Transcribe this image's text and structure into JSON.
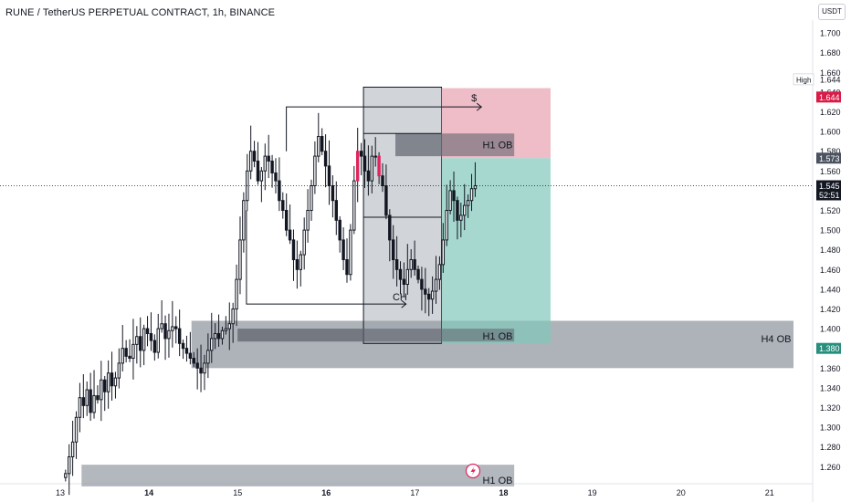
{
  "header": {
    "title": "RUNE / TetherUS PERPETUAL CONTRACT, 1h, BINANCE",
    "currency_badge": "USDT"
  },
  "colors": {
    "up": "#131722",
    "down": "#131722",
    "highlight_candle": "#e0245e",
    "zone_gray": "#9aa0a8",
    "zone_dark": "#6b7079",
    "target_zone": "#80c8bb",
    "stop_zone": "#e8a7b4",
    "high_badge": "#d81b47",
    "price_badge": "#131722",
    "level_badge": "#4b5260",
    "h4_badge": "#268f7d"
  },
  "price_labels": {
    "high_label": "High",
    "high_value": "1.644",
    "high_badge": "1.644",
    "level_badge": "1.573",
    "current_price": "1.545",
    "countdown": "52:51",
    "h4_badge": "1.380"
  },
  "annotations": {
    "h1_ob_top": "H1 OB",
    "h1_ob_mid": "H1 OB",
    "h1_ob_bottom": "H1 OB",
    "h4_ob": "H4 OB",
    "ch": "CH",
    "dollar": "$"
  },
  "chart_data": {
    "type": "candlestick",
    "title": "RUNE / TetherUS PERPETUAL CONTRACT, 1h, BINANCE",
    "ylim": [
      1.24,
      1.72
    ],
    "y_ticks": [
      "1.260",
      "1.280",
      "1.300",
      "1.320",
      "1.340",
      "1.360",
      "1.380",
      "1.400",
      "1.420",
      "1.440",
      "1.460",
      "1.480",
      "1.500",
      "1.520",
      "1.540",
      "1.560",
      "1.580",
      "1.600",
      "1.620",
      "1.640",
      "1.660",
      "1.680",
      "1.700"
    ],
    "x_tick_labels": [
      "13",
      "14",
      "15",
      "16",
      "17",
      "18",
      "19",
      "20",
      "21"
    ],
    "x_tick_bold": [
      "14",
      "16",
      "18"
    ],
    "x_range_days": [
      12.97,
      21.1
    ],
    "high": 1.644,
    "current_price": 1.545,
    "candle_count": 116,
    "closes": [
      1.253,
      1.27,
      1.285,
      1.31,
      1.33,
      1.322,
      1.338,
      1.315,
      1.332,
      1.328,
      1.348,
      1.336,
      1.355,
      1.342,
      1.35,
      1.365,
      1.38,
      1.372,
      1.37,
      1.384,
      1.392,
      1.378,
      1.4,
      1.395,
      1.388,
      1.376,
      1.4,
      1.405,
      1.39,
      1.398,
      1.402,
      1.4,
      1.385,
      1.38,
      1.375,
      1.37,
      1.365,
      1.36,
      1.355,
      1.365,
      1.378,
      1.39,
      1.395,
      1.39,
      1.398,
      1.4,
      1.405,
      1.42,
      1.45,
      1.49,
      1.53,
      1.56,
      1.58,
      1.57,
      1.55,
      1.56,
      1.575,
      1.57,
      1.558,
      1.55,
      1.53,
      1.52,
      1.5,
      1.49,
      1.47,
      1.46,
      1.475,
      1.5,
      1.52,
      1.545,
      1.575,
      1.595,
      1.58,
      1.565,
      1.545,
      1.53,
      1.51,
      1.49,
      1.47,
      1.455,
      1.5,
      1.55,
      1.58,
      1.575,
      1.56,
      1.55,
      1.575,
      1.575,
      1.555,
      1.545,
      1.515,
      1.49,
      1.47,
      1.46,
      1.45,
      1.445,
      1.46,
      1.47,
      1.46,
      1.45,
      1.44,
      1.435,
      1.43,
      1.438,
      1.45,
      1.465,
      1.49,
      1.52,
      1.54,
      1.53,
      1.51,
      1.515,
      1.525,
      1.53,
      1.542,
      1.545
    ],
    "highlighted_candles": [
      82,
      88
    ],
    "zones": [
      {
        "label": "H4 OB",
        "from_day": 14.48,
        "to_day": 21.27,
        "low": 1.36,
        "high": 1.408
      },
      {
        "label": "H1 OB",
        "from_day": 15.0,
        "to_day": 18.12,
        "low": 1.387,
        "high": 1.4
      },
      {
        "label": "H1 OB",
        "from_day": 16.78,
        "to_day": 18.12,
        "low": 1.575,
        "high": 1.598
      },
      {
        "label": "H1 OB",
        "from_day": 13.24,
        "to_day": 18.12,
        "low": 1.24,
        "high": 1.262
      },
      {
        "label": "range box",
        "from_day": 16.42,
        "to_day": 17.3,
        "low": 1.385,
        "high": 1.645
      }
    ],
    "position": {
      "type": "long",
      "entry": 1.573,
      "stop_top": 1.644,
      "target_bottom": 1.385,
      "from_day": 17.3,
      "to_day": 18.53
    },
    "lines": [
      {
        "label": "$",
        "from_day": 15.55,
        "to_day": 17.75,
        "price": 1.625
      },
      {
        "label": "CH",
        "from_day": 15.1,
        "to_day": 16.9,
        "price": 1.425
      }
    ]
  }
}
